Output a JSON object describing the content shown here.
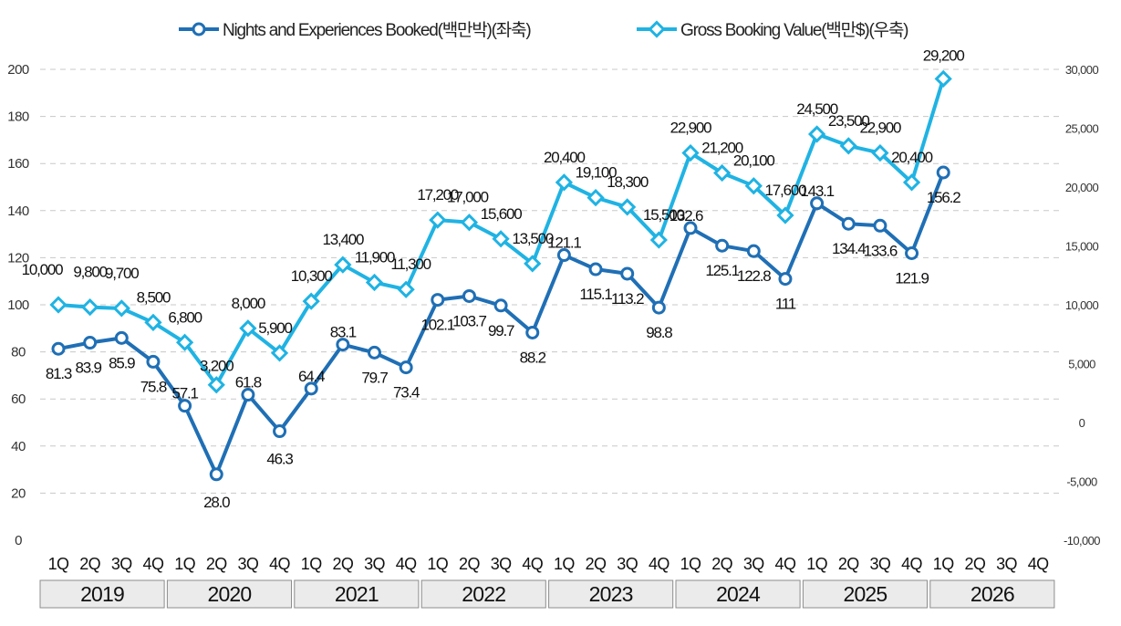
{
  "chart_data": {
    "type": "line",
    "categories": [
      "1Q",
      "2Q",
      "3Q",
      "4Q",
      "1Q",
      "2Q",
      "3Q",
      "4Q",
      "1Q",
      "2Q",
      "3Q",
      "4Q",
      "1Q",
      "2Q",
      "3Q",
      "4Q",
      "1Q",
      "2Q",
      "3Q",
      "4Q",
      "1Q",
      "2Q",
      "3Q",
      "4Q",
      "1Q",
      "2Q",
      "3Q",
      "4Q",
      "1Q",
      "2Q",
      "3Q",
      "4Q"
    ],
    "years": [
      "2019",
      "2020",
      "2021",
      "2022",
      "2023",
      "2024",
      "2025",
      "2026"
    ],
    "series": [
      {
        "name": "Nights and Experiences Booked(백만박)(좌축)",
        "axis": "left",
        "color": "#1f6fb5",
        "values": [
          81.3,
          83.9,
          85.9,
          75.8,
          57.1,
          28.0,
          61.8,
          46.3,
          64.4,
          83.1,
          79.7,
          73.4,
          102.1,
          103.7,
          99.7,
          88.2,
          121.1,
          115.1,
          113.2,
          98.8,
          132.6,
          125.1,
          122.8,
          111,
          143.1,
          134.4,
          133.6,
          121.9,
          156.2,
          null,
          null,
          null
        ],
        "labels": [
          "81.3",
          "83.9",
          "85.9",
          "75.8",
          "57.1",
          "28.0",
          "61.8",
          "46.3",
          "64.4",
          "83.1",
          "79.7",
          "73.4",
          "102.1",
          "103.7",
          "99.7",
          "88.2",
          "121.1",
          "115.1",
          "113.2",
          "98.8",
          "132.6",
          "125.1",
          "122.8",
          "111",
          "143.1",
          "134.4",
          "133.6",
          "121.9",
          "156.2",
          "",
          "",
          ""
        ]
      },
      {
        "name": "Gross Booking Value(백만$)(우축)",
        "axis": "right",
        "color": "#1fb3e3",
        "values": [
          10000,
          9800,
          9700,
          8500,
          6800,
          3200,
          8000,
          5900,
          10300,
          13400,
          11900,
          11300,
          17200,
          17000,
          15600,
          13500,
          20400,
          19100,
          18300,
          15500,
          22900,
          21200,
          20100,
          17600,
          24500,
          23500,
          22900,
          20400,
          29200,
          null,
          null,
          null
        ],
        "labels": [
          "10,000",
          "9,800",
          "9,700",
          "8,500",
          "6,800",
          "3,200",
          "8,000",
          "5,900",
          "10,300",
          "13,400",
          "11,900",
          "11,300",
          "17,200",
          "17,000",
          "15,600",
          "13,500",
          "20,400",
          "19,100",
          "18,300",
          "15,500",
          "22,900",
          "21,200",
          "20,100",
          "17,600",
          "24,500",
          "23,500",
          "22,900",
          "20,400",
          "29,200",
          "",
          "",
          ""
        ]
      }
    ],
    "yaxis_left": {
      "ylim": [
        0,
        200
      ],
      "ticks": [
        "0",
        "20",
        "40",
        "60",
        "80",
        "100",
        "120",
        "140",
        "160",
        "180",
        "200"
      ]
    },
    "yaxis_right": {
      "ylim": [
        -10000,
        30000
      ],
      "ticks": [
        "-10,000",
        "-5,000",
        "0",
        "5,000",
        "10,000",
        "15,000",
        "20,000",
        "25,000",
        "30,000"
      ]
    },
    "grid": true,
    "legend": "top-center"
  }
}
